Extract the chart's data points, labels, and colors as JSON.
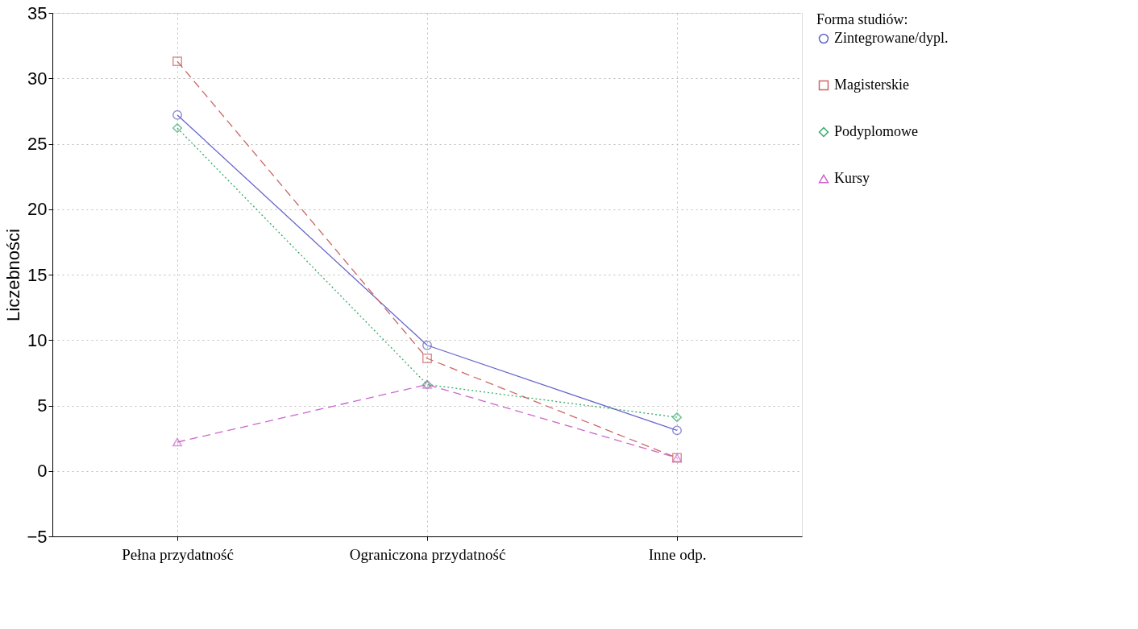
{
  "chart_data": {
    "type": "line",
    "ylabel": "Liczebności",
    "legend_title": "Forma studiów:",
    "categories": [
      "Pełna przydatność",
      "Ograniczona przydatność",
      "Inne odp."
    ],
    "series": [
      {
        "name": "Zintegrowane/dypl.",
        "color": "#6666cc",
        "values": [
          27.2,
          9.6,
          3.1
        ],
        "marker": "circle",
        "line_style": "solid"
      },
      {
        "name": "Magisterskie",
        "color": "#cc6666",
        "values": [
          31.3,
          8.6,
          1.0
        ],
        "marker": "square",
        "line_style": "dashed"
      },
      {
        "name": "Podyplomowe",
        "color": "#33aa66",
        "values": [
          26.2,
          6.6,
          4.1
        ],
        "marker": "diamond",
        "line_style": "dotted"
      },
      {
        "name": "Kursy",
        "color": "#cc66cc",
        "values": [
          2.2,
          6.6,
          1.0
        ],
        "marker": "triangle",
        "line_style": "dashed"
      }
    ],
    "ylim": [
      -5,
      35
    ],
    "yticks": [
      -5,
      0,
      5,
      10,
      15,
      20,
      25,
      30,
      35
    ],
    "grid": true,
    "legend": "right"
  }
}
